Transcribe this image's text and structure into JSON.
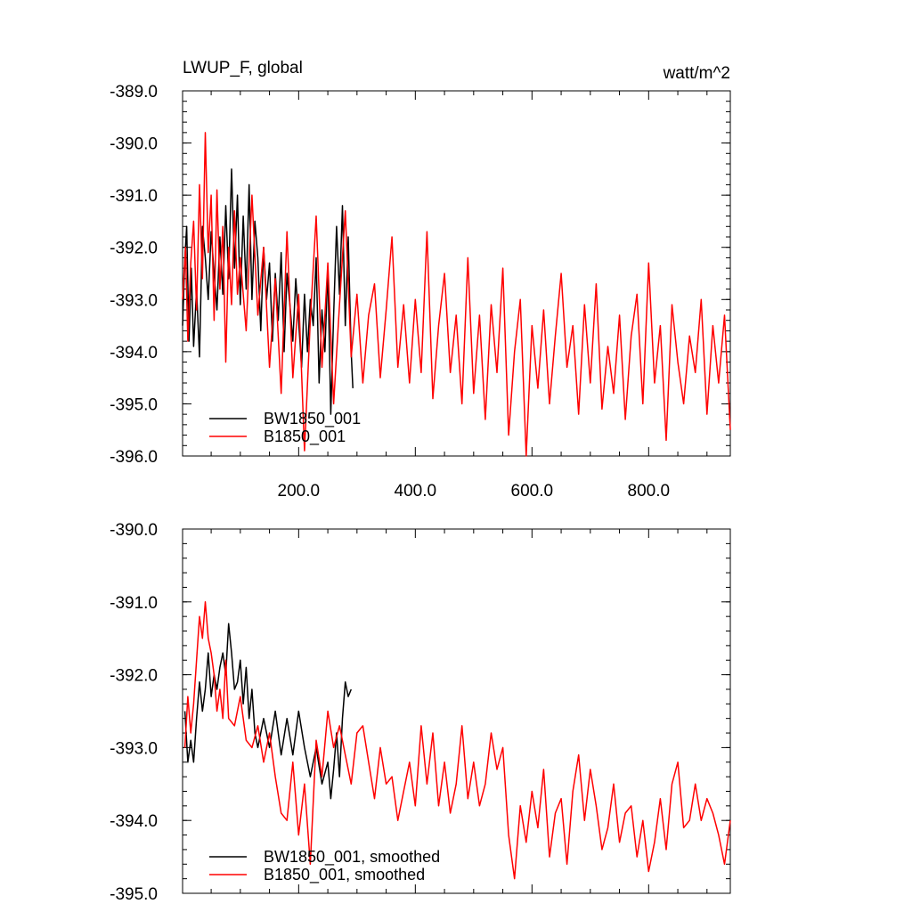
{
  "chart_data": [
    {
      "type": "line",
      "title_left": "LWUP_F, global",
      "title_right": "watt/m^2",
      "xlim": [
        1,
        940
      ],
      "ylim": [
        -396.0,
        -389.0
      ],
      "yticks": [
        "-389.0",
        "-390.0",
        "-391.0",
        "-392.0",
        "-393.0",
        "-394.0",
        "-395.0",
        "-396.0"
      ],
      "yticks_values": [
        -389,
        -390,
        -391,
        -392,
        -393,
        -394,
        -395,
        -396
      ],
      "xticks": [
        "200.0",
        "400.0",
        "600.0",
        "800.0"
      ],
      "xticks_values": [
        200,
        400,
        600,
        800
      ],
      "legend_placement": "bottom-left",
      "series": [
        {
          "name": "BW1850_001",
          "color": "#000000",
          "x": [
            1,
            5,
            8,
            12,
            16,
            20,
            25,
            30,
            35,
            40,
            45,
            50,
            55,
            60,
            65,
            70,
            75,
            80,
            85,
            90,
            95,
            100,
            105,
            110,
            115,
            120,
            125,
            130,
            135,
            140,
            145,
            150,
            155,
            160,
            165,
            170,
            175,
            180,
            185,
            190,
            195,
            200,
            205,
            210,
            215,
            220,
            225,
            230,
            235,
            240,
            245,
            250,
            255,
            260,
            265,
            270,
            275,
            280,
            285,
            290,
            293
          ],
          "values": [
            -393.5,
            -392.2,
            -391.6,
            -393.8,
            -392.4,
            -393.9,
            -392.8,
            -394.1,
            -391.6,
            -392.2,
            -393.0,
            -391.7,
            -392.5,
            -393.2,
            -391.8,
            -392.9,
            -391.2,
            -392.6,
            -390.5,
            -392.4,
            -391.0,
            -393.1,
            -391.4,
            -392.8,
            -390.8,
            -393.0,
            -391.5,
            -392.2,
            -393.6,
            -392.0,
            -393.0,
            -392.3,
            -393.8,
            -392.5,
            -393.4,
            -392.1,
            -394.0,
            -392.5,
            -393.1,
            -393.8,
            -392.6,
            -393.4,
            -394.3,
            -392.9,
            -394.0,
            -393.0,
            -393.5,
            -392.2,
            -394.6,
            -393.2,
            -394.0,
            -392.4,
            -395.2,
            -393.3,
            -391.6,
            -392.9,
            -391.2,
            -393.5,
            -391.8,
            -394.0,
            -394.7
          ]
        },
        {
          "name": "B1850_001",
          "color": "#ff0000",
          "x": [
            1,
            6,
            10,
            15,
            20,
            25,
            30,
            35,
            40,
            45,
            50,
            55,
            60,
            65,
            70,
            75,
            80,
            85,
            90,
            95,
            100,
            110,
            120,
            130,
            140,
            150,
            160,
            170,
            180,
            190,
            200,
            210,
            220,
            230,
            240,
            250,
            260,
            270,
            280,
            290,
            300,
            310,
            320,
            330,
            340,
            350,
            360,
            370,
            380,
            390,
            400,
            410,
            420,
            430,
            440,
            450,
            460,
            470,
            480,
            490,
            500,
            510,
            520,
            530,
            540,
            550,
            560,
            570,
            580,
            590,
            600,
            610,
            620,
            630,
            640,
            650,
            660,
            670,
            680,
            690,
            700,
            710,
            720,
            730,
            740,
            750,
            760,
            770,
            780,
            790,
            800,
            810,
            820,
            830,
            840,
            850,
            860,
            870,
            880,
            890,
            900,
            910,
            920,
            930,
            940
          ],
          "values": [
            -393.0,
            -392.0,
            -393.8,
            -392.3,
            -391.5,
            -393.2,
            -390.8,
            -392.6,
            -389.8,
            -392.1,
            -391.0,
            -393.4,
            -390.9,
            -392.8,
            -391.6,
            -394.2,
            -392.0,
            -393.1,
            -391.3,
            -392.9,
            -392.2,
            -393.6,
            -391.0,
            -393.3,
            -392.0,
            -394.3,
            -392.6,
            -394.8,
            -391.7,
            -394.5,
            -392.9,
            -395.9,
            -393.4,
            -391.4,
            -394.3,
            -392.3,
            -395.0,
            -393.1,
            -391.3,
            -394.1,
            -392.9,
            -394.6,
            -393.3,
            -392.7,
            -394.5,
            -393.2,
            -391.8,
            -394.3,
            -393.1,
            -394.6,
            -393.0,
            -394.4,
            -391.7,
            -394.9,
            -393.5,
            -392.5,
            -394.4,
            -393.3,
            -395.0,
            -392.2,
            -394.8,
            -393.3,
            -395.3,
            -393.1,
            -394.4,
            -392.4,
            -395.6,
            -394.0,
            -393.0,
            -396.0,
            -393.5,
            -394.7,
            -393.2,
            -395.0,
            -393.7,
            -392.5,
            -394.3,
            -393.5,
            -395.2,
            -393.1,
            -394.6,
            -392.7,
            -395.1,
            -393.9,
            -394.8,
            -393.3,
            -395.3,
            -393.7,
            -392.9,
            -395.0,
            -392.3,
            -394.6,
            -393.5,
            -395.7,
            -393.1,
            -394.2,
            -395.0,
            -393.7,
            -394.4,
            -393.0,
            -395.2,
            -393.5,
            -394.6,
            -393.3,
            -395.5
          ]
        }
      ]
    },
    {
      "type": "line",
      "xlim": [
        1,
        940
      ],
      "ylim": [
        -395.0,
        -390.0
      ],
      "yticks": [
        "-390.0",
        "-391.0",
        "-392.0",
        "-393.0",
        "-394.0",
        "-395.0"
      ],
      "yticks_values": [
        -390,
        -391,
        -392,
        -393,
        -394,
        -395
      ],
      "xticks_values": [
        200,
        400,
        600,
        800
      ],
      "legend_placement": "bottom-left",
      "series": [
        {
          "name": "BW1850_001, smoothed",
          "color": "#000000",
          "x": [
            5,
            10,
            15,
            20,
            25,
            30,
            35,
            40,
            45,
            50,
            55,
            60,
            65,
            70,
            75,
            80,
            85,
            90,
            95,
            100,
            105,
            110,
            115,
            120,
            125,
            130,
            140,
            150,
            160,
            170,
            180,
            190,
            200,
            210,
            220,
            230,
            240,
            250,
            255,
            260,
            265,
            270,
            275,
            280,
            285,
            290
          ],
          "values": [
            -392.5,
            -393.2,
            -392.9,
            -393.2,
            -392.6,
            -392.1,
            -392.5,
            -392.2,
            -391.7,
            -392.3,
            -392.0,
            -392.2,
            -391.9,
            -391.7,
            -392.0,
            -391.3,
            -391.7,
            -392.2,
            -392.1,
            -391.8,
            -392.4,
            -391.9,
            -392.6,
            -392.2,
            -392.8,
            -393.0,
            -392.6,
            -393.0,
            -392.5,
            -393.1,
            -392.6,
            -393.1,
            -392.5,
            -393.0,
            -393.4,
            -393.0,
            -393.5,
            -393.2,
            -393.7,
            -393.3,
            -392.8,
            -393.4,
            -392.6,
            -392.1,
            -392.3,
            -392.2
          ]
        },
        {
          "name": "B1850_001, smoothed",
          "color": "#ff0000",
          "x": [
            5,
            10,
            15,
            20,
            25,
            30,
            35,
            40,
            45,
            50,
            55,
            60,
            65,
            70,
            75,
            80,
            90,
            100,
            110,
            120,
            130,
            140,
            150,
            160,
            170,
            180,
            190,
            200,
            210,
            220,
            230,
            240,
            250,
            260,
            270,
            280,
            290,
            300,
            310,
            320,
            330,
            340,
            350,
            360,
            370,
            380,
            390,
            400,
            410,
            420,
            430,
            440,
            450,
            460,
            470,
            480,
            490,
            500,
            510,
            520,
            530,
            540,
            550,
            560,
            570,
            580,
            590,
            600,
            610,
            620,
            630,
            640,
            650,
            660,
            670,
            680,
            690,
            700,
            710,
            720,
            730,
            740,
            750,
            760,
            770,
            780,
            790,
            800,
            810,
            820,
            830,
            840,
            850,
            860,
            870,
            880,
            890,
            900,
            910,
            920,
            930,
            940
          ],
          "values": [
            -393.0,
            -392.3,
            -392.8,
            -392.4,
            -391.8,
            -391.2,
            -391.5,
            -391.0,
            -391.5,
            -391.7,
            -392.0,
            -392.5,
            -392.2,
            -392.6,
            -391.8,
            -392.6,
            -392.7,
            -392.3,
            -392.9,
            -393.0,
            -392.7,
            -393.2,
            -392.8,
            -393.4,
            -393.9,
            -394.0,
            -393.2,
            -394.2,
            -393.5,
            -394.6,
            -392.9,
            -393.4,
            -392.5,
            -393.0,
            -392.7,
            -393.1,
            -393.5,
            -392.8,
            -392.7,
            -393.2,
            -393.7,
            -393.0,
            -393.5,
            -393.4,
            -394.0,
            -393.6,
            -393.2,
            -393.8,
            -392.7,
            -393.5,
            -392.8,
            -393.8,
            -393.2,
            -393.9,
            -393.5,
            -392.7,
            -393.7,
            -393.2,
            -393.8,
            -393.5,
            -392.8,
            -393.3,
            -393.0,
            -394.2,
            -394.8,
            -393.8,
            -394.3,
            -393.6,
            -394.1,
            -393.3,
            -394.5,
            -393.9,
            -393.7,
            -394.6,
            -393.6,
            -393.1,
            -394.0,
            -393.3,
            -393.8,
            -394.4,
            -394.1,
            -393.5,
            -394.3,
            -393.9,
            -393.8,
            -394.5,
            -394.0,
            -394.7,
            -394.3,
            -393.7,
            -394.4,
            -393.5,
            -393.2,
            -394.1,
            -394.0,
            -393.5,
            -394.0,
            -393.7,
            -393.9,
            -394.2,
            -394.6,
            -394.0
          ]
        }
      ]
    }
  ]
}
